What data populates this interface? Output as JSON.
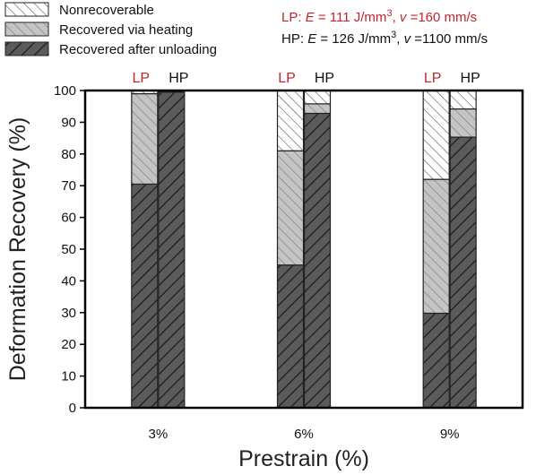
{
  "chart_data": {
    "type": "bar",
    "stacked": true,
    "title": "",
    "xlabel": "Prestrain (%)",
    "ylabel": "Deformation Recovery (%)",
    "ylim": [
      0,
      100
    ],
    "yticks": [
      "0",
      "10",
      "20",
      "30",
      "40",
      "50",
      "60",
      "70",
      "80",
      "90",
      "100"
    ],
    "categories": [
      "3%",
      "6%",
      "9%"
    ],
    "groups": [
      "LP",
      "HP"
    ],
    "group_colors": {
      "LP": "#c0262d",
      "HP": "#111111"
    },
    "series": [
      {
        "name": "Recovered after unloading",
        "fill": "#5b5b5b",
        "pattern": "backslash-dark",
        "values": {
          "LP": [
            70.5,
            45,
            29.8
          ],
          "HP": [
            99.5,
            92.8,
            85.3
          ]
        }
      },
      {
        "name": "Recovered via heating",
        "fill": "#c4c4c4",
        "pattern": "slash-gray",
        "values": {
          "LP": [
            28.5,
            36,
            42.2
          ],
          "HP": [
            0.3,
            3,
            8.9
          ]
        }
      },
      {
        "name": "Nonrecoverable",
        "fill": "#ffffff",
        "pattern": "slash-white",
        "values": {
          "LP": [
            1,
            19,
            28
          ],
          "HP": [
            0.2,
            4.2,
            5.8
          ]
        }
      }
    ],
    "legend_position": "top-left",
    "legend": [
      "Nonrecoverable",
      "Recovered via heating",
      "Recovered after unloading"
    ],
    "annotations": {
      "lp_line": {
        "prefix": "LP: ",
        "e_sym": "E",
        "e_val": " = 111  J/mm",
        "sup": "3",
        "sep": ", ",
        "v_sym": "v",
        "v_val": " =160 mm/s",
        "color": "#c0262d"
      },
      "hp_line": {
        "prefix": "HP: ",
        "e_sym": "E",
        "e_val": " = 126  J/mm",
        "sup": "3",
        "sep": ", ",
        "v_sym": "v",
        "v_val": " =1100 mm/s",
        "color": "#111111"
      }
    }
  }
}
